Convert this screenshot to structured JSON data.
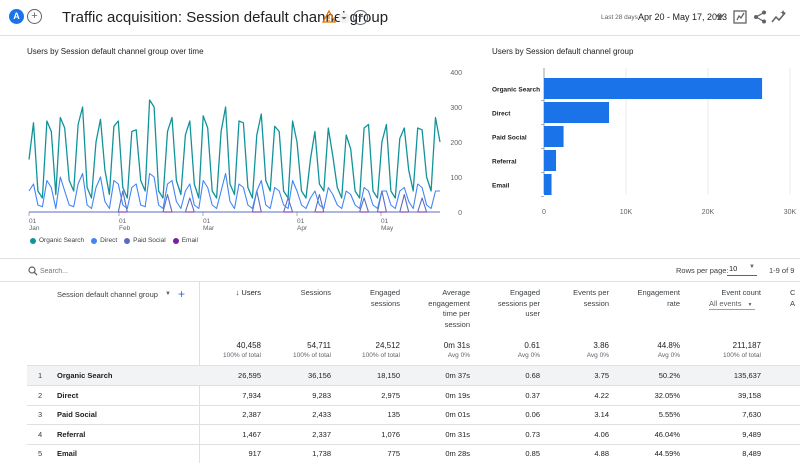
{
  "header": {
    "avatar_letter": "A",
    "add_label": "+",
    "title": "Traffic acquisition: Session default channel group",
    "date_label": "Last 28 days",
    "date_range": "Apr 20 - May 17, 2023"
  },
  "line_card": {
    "title": "Users by Session default channel group over time",
    "y_ticks": [
      "400",
      "300",
      "200",
      "100",
      "0"
    ],
    "x_ticks": [
      {
        "day": "01",
        "month": "Jan"
      },
      {
        "day": "01",
        "month": "Feb"
      },
      {
        "day": "01",
        "month": "Mar"
      },
      {
        "day": "01",
        "month": "Apr"
      },
      {
        "day": "01",
        "month": "May"
      }
    ],
    "legend": [
      {
        "name": "Organic Search",
        "color": "#12939a"
      },
      {
        "name": "Direct",
        "color": "#4285f4"
      },
      {
        "name": "Paid Social",
        "color": "#5c6bc0"
      },
      {
        "name": "Email",
        "color": "#7b1fa2"
      }
    ]
  },
  "bar_card": {
    "title": "Users by Session default channel group",
    "x_ticks": [
      "0",
      "10K",
      "20K",
      "30K"
    ]
  },
  "chart_data": [
    {
      "type": "line",
      "title": "Users by Session default channel group over time",
      "ylim": [
        0,
        400
      ],
      "x_ticks": [
        "01 Jan",
        "01 Feb",
        "01 Mar",
        "01 Apr",
        "01 May"
      ],
      "series": [
        {
          "name": "Organic Search",
          "values": [
            150,
            255,
            60,
            40,
            260,
            230,
            50,
            270,
            240,
            90,
            60,
            250,
            300,
            70,
            40,
            200,
            265,
            120,
            50,
            245,
            260,
            70,
            40,
            230,
            235,
            90,
            60,
            320,
            300,
            60,
            40,
            230,
            270,
            90,
            50,
            220,
            260,
            80,
            40,
            275,
            240,
            60,
            40,
            230,
            300,
            80,
            50,
            260,
            255,
            70,
            40,
            220,
            280,
            90,
            60,
            245,
            230,
            60,
            40,
            260,
            200,
            60,
            40,
            150,
            230,
            80,
            60,
            240,
            160,
            70,
            40,
            220,
            180,
            60,
            40,
            240,
            250,
            60,
            40,
            200,
            250,
            60,
            40,
            210,
            240,
            120,
            60,
            240,
            235,
            100,
            60,
            270,
            200
          ]
        },
        {
          "name": "Direct",
          "values": [
            60,
            80,
            20,
            15,
            90,
            70,
            10,
            100,
            60,
            20,
            15,
            80,
            110,
            20,
            10,
            70,
            100,
            30,
            10,
            90,
            80,
            20,
            10,
            70,
            80,
            20,
            15,
            110,
            100,
            20,
            10,
            80,
            90,
            30,
            10,
            60,
            80,
            20,
            10,
            90,
            70,
            20,
            10,
            60,
            110,
            30,
            10,
            80,
            70,
            20,
            10,
            60,
            90,
            20,
            10,
            70,
            60,
            20,
            10,
            90,
            60,
            20,
            10,
            40,
            60,
            20,
            10,
            70,
            50,
            20,
            10,
            60,
            50,
            20,
            10,
            70,
            60,
            20,
            10,
            60,
            60,
            20,
            10,
            60,
            70,
            30,
            10,
            80,
            70,
            20,
            10,
            60,
            60
          ]
        },
        {
          "name": "Paid Social",
          "values": [
            0,
            0,
            0,
            0,
            0,
            0,
            0,
            0,
            0,
            0,
            0,
            0,
            0,
            0,
            0,
            0,
            0,
            0,
            0,
            0,
            0,
            60,
            0,
            0,
            0,
            0,
            0,
            0,
            0,
            0,
            0,
            50,
            0,
            0,
            0,
            0,
            40,
            0,
            0,
            0,
            0,
            0,
            0,
            0,
            0,
            0,
            0,
            0,
            0,
            0,
            0,
            60,
            0,
            0,
            0,
            0,
            0,
            0,
            40,
            0,
            0,
            0,
            0,
            0,
            0,
            50,
            0,
            0,
            0,
            0,
            0,
            0,
            0,
            0,
            0,
            40,
            0,
            0,
            0,
            60,
            0,
            0,
            0,
            0,
            50,
            0,
            0,
            0,
            40,
            0,
            0,
            0,
            0
          ]
        },
        {
          "name": "Email",
          "values": [
            0,
            0,
            0,
            0,
            0,
            0,
            0,
            0,
            0,
            0,
            0,
            0,
            0,
            0,
            0,
            0,
            0,
            0,
            0,
            0,
            0,
            0,
            0,
            0,
            0,
            0,
            0,
            0,
            0,
            0,
            0,
            0,
            0,
            0,
            0,
            0,
            0,
            0,
            0,
            0,
            0,
            0,
            0,
            0,
            0,
            0,
            0,
            0,
            0,
            0,
            0,
            0,
            0,
            0,
            0,
            0,
            0,
            0,
            0,
            0,
            0,
            0,
            0,
            0,
            0,
            0,
            0,
            0,
            0,
            0,
            0,
            0,
            0,
            0,
            0,
            0,
            0,
            0,
            0,
            0,
            0,
            0,
            0,
            0,
            0,
            0,
            0,
            0,
            0,
            0,
            0,
            0,
            0
          ]
        }
      ]
    },
    {
      "type": "bar",
      "orientation": "horizontal",
      "title": "Users by Session default channel group",
      "categories": [
        "Organic Search",
        "Direct",
        "Paid Social",
        "Referral",
        "Email"
      ],
      "values": [
        26595,
        7934,
        2387,
        1467,
        917
      ],
      "xlim": [
        0,
        30000
      ],
      "x_ticks": [
        "0",
        "10K",
        "20K",
        "30K"
      ]
    }
  ],
  "table": {
    "search_placeholder": "Search...",
    "rows_per_page_label": "Rows per page:",
    "rows_per_page_value": "10",
    "pager": "1-9 of 9",
    "dimension_header": "Session default channel group",
    "event_select": "All events",
    "columns": [
      {
        "l1": "↓ Users",
        "l2": "",
        "l3": "",
        "l4": "",
        "total": "40,458",
        "sub": "100% of total"
      },
      {
        "l1": "Sessions",
        "l2": "",
        "l3": "",
        "l4": "",
        "total": "54,711",
        "sub": "100% of total"
      },
      {
        "l1": "Engaged",
        "l2": "sessions",
        "l3": "",
        "l4": "",
        "total": "24,512",
        "sub": "100% of total"
      },
      {
        "l1": "Average",
        "l2": "engagement",
        "l3": "time per",
        "l4": "session",
        "total": "0m 31s",
        "sub": "Avg 0%"
      },
      {
        "l1": "Engaged",
        "l2": "sessions per",
        "l3": "user",
        "l4": "",
        "total": "0.61",
        "sub": "Avg 0%"
      },
      {
        "l1": "Events per",
        "l2": "session",
        "l3": "",
        "l4": "",
        "total": "3.86",
        "sub": "Avg 0%"
      },
      {
        "l1": "Engagement",
        "l2": "rate",
        "l3": "",
        "l4": "",
        "total": "44.8%",
        "sub": "Avg 0%"
      },
      {
        "l1": "Event count",
        "l2": "",
        "l3": "",
        "l4": "",
        "total": "211,187",
        "sub": "100% of total"
      }
    ],
    "partial_col": {
      "l1": "C",
      "l2": "A"
    },
    "rows": [
      {
        "n": "1",
        "name": "Organic Search",
        "v": [
          "26,595",
          "36,156",
          "18,150",
          "0m 37s",
          "0.68",
          "3.75",
          "50.2%",
          "135,637"
        ]
      },
      {
        "n": "2",
        "name": "Direct",
        "v": [
          "7,934",
          "9,283",
          "2,975",
          "0m 19s",
          "0.37",
          "4.22",
          "32.05%",
          "39,158"
        ]
      },
      {
        "n": "3",
        "name": "Paid Social",
        "v": [
          "2,387",
          "2,433",
          "135",
          "0m 01s",
          "0.06",
          "3.14",
          "5.55%",
          "7,630"
        ]
      },
      {
        "n": "4",
        "name": "Referral",
        "v": [
          "1,467",
          "2,337",
          "1,076",
          "0m 31s",
          "0.73",
          "4.06",
          "46.04%",
          "9,489"
        ]
      },
      {
        "n": "5",
        "name": "Email",
        "v": [
          "917",
          "1,738",
          "775",
          "0m 28s",
          "0.85",
          "4.88",
          "44.59%",
          "8,489"
        ]
      }
    ]
  }
}
